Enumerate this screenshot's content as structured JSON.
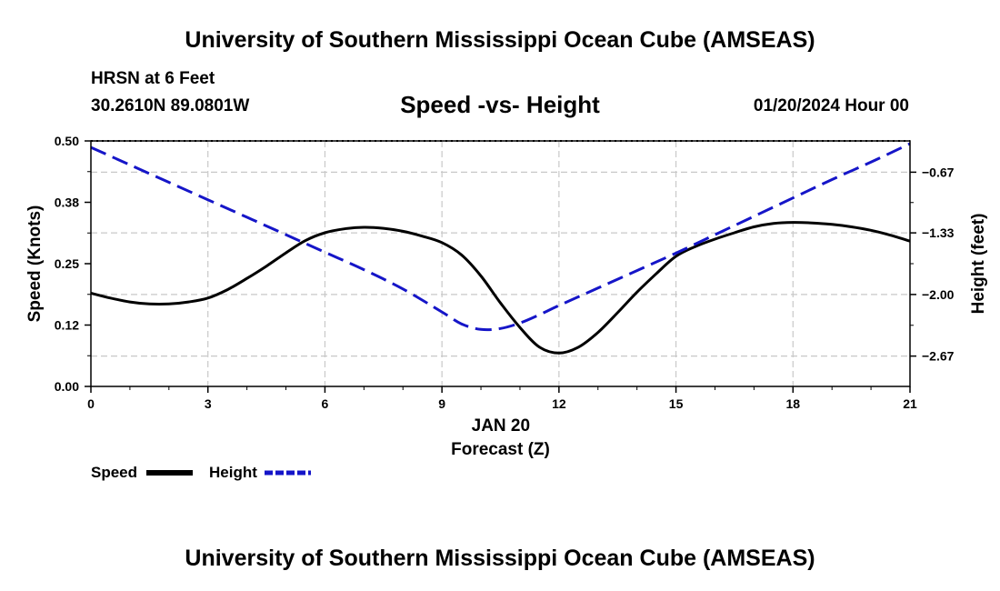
{
  "header": {
    "title_top": "University of Southern Mississippi Ocean Cube (AMSEAS)",
    "title_bottom": "University of Southern Mississippi Ocean Cube (AMSEAS)",
    "station": "HRSN at 6 Feet",
    "coords": "30.2610N  89.0801W",
    "subtitle": "Speed -vs- Height",
    "datetime": "01/20/2024 Hour 00"
  },
  "chart_data": {
    "type": "line",
    "title": "Speed -vs- Height",
    "xlabel": "Forecast (Z)",
    "xlabel_date": "JAN 20",
    "ylabel": "Speed (Knots)",
    "y2label": "Height (feet)",
    "xlim": [
      0,
      21
    ],
    "ylim": [
      0,
      0.5
    ],
    "y2lim": [
      -3.0,
      -0.33
    ],
    "x_ticks": [
      0,
      3,
      6,
      9,
      12,
      15,
      18,
      21
    ],
    "x_tick_labels": [
      "0",
      "3",
      "6",
      "9",
      "12",
      "15",
      "18",
      "21"
    ],
    "y_ticks": [
      0,
      0.125,
      0.25,
      0.375,
      0.5
    ],
    "y_tick_labels": [
      "0.00",
      "0.12",
      "0.25",
      "0.38",
      "0.50"
    ],
    "y2_ticks": [
      -2.67,
      -2.0,
      -1.33,
      -0.67
    ],
    "y2_tick_labels": [
      "−2.67",
      "−2.00",
      "−1.33",
      "−0.67"
    ],
    "grid": true,
    "series": [
      {
        "name": "Speed",
        "axis": "left",
        "color": "#000000",
        "dash": "solid",
        "x": [
          0,
          0.5,
          1,
          1.5,
          2,
          2.5,
          3,
          3.5,
          4,
          4.5,
          5,
          5.5,
          6,
          6.5,
          7,
          7.5,
          8,
          8.5,
          9,
          9.5,
          10,
          10.5,
          11,
          11.5,
          12,
          12.5,
          13,
          13.5,
          14,
          14.5,
          15,
          15.5,
          16,
          16.5,
          17,
          17.5,
          18,
          18.5,
          19,
          19.5,
          20,
          20.5,
          21
        ],
        "values": [
          0.19,
          0.18,
          0.172,
          0.168,
          0.168,
          0.172,
          0.18,
          0.197,
          0.22,
          0.245,
          0.272,
          0.297,
          0.313,
          0.321,
          0.324,
          0.322,
          0.316,
          0.306,
          0.293,
          0.268,
          0.225,
          0.17,
          0.12,
          0.08,
          0.068,
          0.08,
          0.11,
          0.15,
          0.192,
          0.23,
          0.265,
          0.285,
          0.3,
          0.313,
          0.325,
          0.332,
          0.334,
          0.333,
          0.33,
          0.325,
          0.318,
          0.308,
          0.296
        ]
      },
      {
        "name": "Height",
        "axis": "right",
        "color": "#1515c8",
        "dash": "dashed",
        "x": [
          0,
          1,
          2,
          3,
          4,
          5,
          6,
          7,
          8,
          9,
          9.5,
          10,
          10.5,
          11,
          11.5,
          12,
          13,
          14,
          15,
          16,
          17,
          18,
          19,
          20,
          21
        ],
        "values": [
          -0.4,
          -0.59,
          -0.78,
          -0.97,
          -1.16,
          -1.35,
          -1.54,
          -1.73,
          -1.94,
          -2.19,
          -2.32,
          -2.38,
          -2.37,
          -2.31,
          -2.22,
          -2.12,
          -1.93,
          -1.74,
          -1.55,
          -1.35,
          -1.15,
          -0.95,
          -0.75,
          -0.56,
          -0.36
        ]
      }
    ],
    "legend": [
      {
        "label": "Speed",
        "color": "#000000",
        "dash": "solid"
      },
      {
        "label": "Height",
        "color": "#1515c8",
        "dash": "dashed"
      }
    ],
    "legend_position": "bottom-left"
  }
}
